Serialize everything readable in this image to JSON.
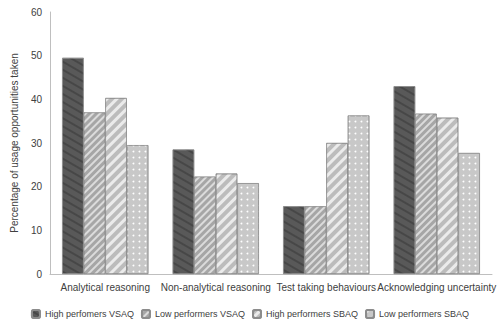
{
  "chart_data": {
    "type": "bar",
    "y_label": "Percentage of usage opportunities taken",
    "categories": [
      "Analytical reasoning",
      "Non-analytical reasoning",
      "Test taking behaviours",
      "Acknowledging uncertainty"
    ],
    "series": [
      {
        "name": "High perfomers VSAQ",
        "color": "#595959",
        "values": [
          49.5,
          28.5,
          15.5,
          43
        ]
      },
      {
        "name": "Low performers VSAQ",
        "color": "#a6a6a6",
        "values": [
          37,
          22.3,
          15.5,
          36.7
        ]
      },
      {
        "name": "High performers SBAQ",
        "color": "#ebebeb",
        "values": [
          40.3,
          23,
          30,
          35.8
        ]
      },
      {
        "name": "Low performers SBAQ",
        "color": "#c8c8c8",
        "values": [
          29.5,
          20.8,
          36.3,
          27.7
        ]
      }
    ],
    "ylim": [
      0,
      60
    ],
    "yticks": [
      0,
      10,
      20,
      30,
      40,
      50,
      60
    ],
    "grid": false,
    "legend": "bottom"
  }
}
